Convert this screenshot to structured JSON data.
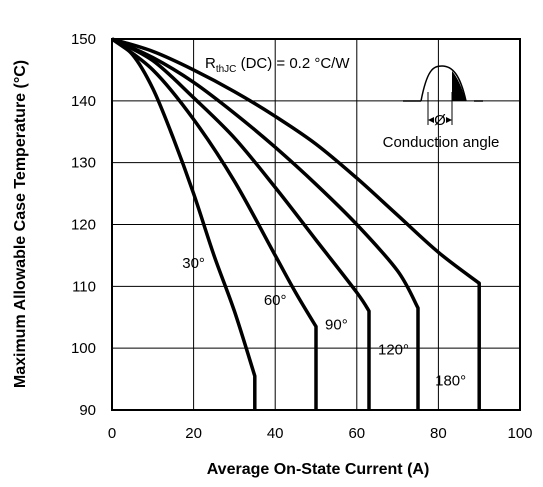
{
  "chart_data": {
    "type": "line",
    "xlabel": "Average On-State Current (A)",
    "ylabel": "Maximum Allowable Case Temperature (°C)",
    "xlim": [
      0,
      100
    ],
    "ylim": [
      90,
      150
    ],
    "x_ticks": [
      "0",
      "20",
      "40",
      "60",
      "80",
      "100"
    ],
    "y_ticks": [
      "90",
      "100",
      "110",
      "120",
      "130",
      "140",
      "150"
    ],
    "x_tick_values": [
      0,
      20,
      40,
      60,
      80,
      100
    ],
    "y_tick_values": [
      90,
      100,
      110,
      120,
      130,
      140,
      150
    ],
    "grid": true,
    "series": [
      {
        "name": "30°",
        "points": [
          [
            0,
            150
          ],
          [
            5,
            147.5
          ],
          [
            10,
            142
          ],
          [
            15,
            134
          ],
          [
            20,
            125
          ],
          [
            25,
            115
          ],
          [
            30,
            106
          ],
          [
            35,
            95.5
          ],
          [
            35,
            90
          ]
        ],
        "label_value": [
          20,
          113
        ]
      },
      {
        "name": "60°",
        "points": [
          [
            0,
            150
          ],
          [
            10,
            145
          ],
          [
            20,
            137
          ],
          [
            30,
            127
          ],
          [
            40,
            115
          ],
          [
            45,
            109
          ],
          [
            50,
            103.5
          ],
          [
            50,
            90
          ]
        ],
        "label_value": [
          40,
          107
        ]
      },
      {
        "name": "90°",
        "points": [
          [
            0,
            150
          ],
          [
            10,
            146.5
          ],
          [
            20,
            140.5
          ],
          [
            30,
            134
          ],
          [
            40,
            126
          ],
          [
            50,
            117.5
          ],
          [
            60,
            109
          ],
          [
            63,
            106
          ],
          [
            63,
            90
          ]
        ],
        "label_value": [
          55,
          103
        ]
      },
      {
        "name": "120°",
        "points": [
          [
            0,
            150
          ],
          [
            10,
            147
          ],
          [
            20,
            143
          ],
          [
            30,
            138
          ],
          [
            40,
            132.5
          ],
          [
            50,
            126.5
          ],
          [
            60,
            120
          ],
          [
            70,
            112.5
          ],
          [
            75,
            106.5
          ],
          [
            75,
            90
          ]
        ],
        "label_value": [
          69,
          99
        ]
      },
      {
        "name": "180°",
        "points": [
          [
            0,
            150
          ],
          [
            10,
            148
          ],
          [
            20,
            145
          ],
          [
            30,
            141.5
          ],
          [
            40,
            137.5
          ],
          [
            50,
            133
          ],
          [
            60,
            127.5
          ],
          [
            70,
            121.5
          ],
          [
            80,
            115.5
          ],
          [
            90,
            110.5
          ],
          [
            90,
            90
          ]
        ],
        "label_value": [
          83,
          94
        ]
      }
    ],
    "annotations": {
      "rthjc_main": "R",
      "rthjc_sub": "thJC",
      "rthjc_rest": "(DC) = 0.2 °C/W",
      "angle_symbol": "Ø",
      "inset_caption": "Conduction angle"
    }
  }
}
